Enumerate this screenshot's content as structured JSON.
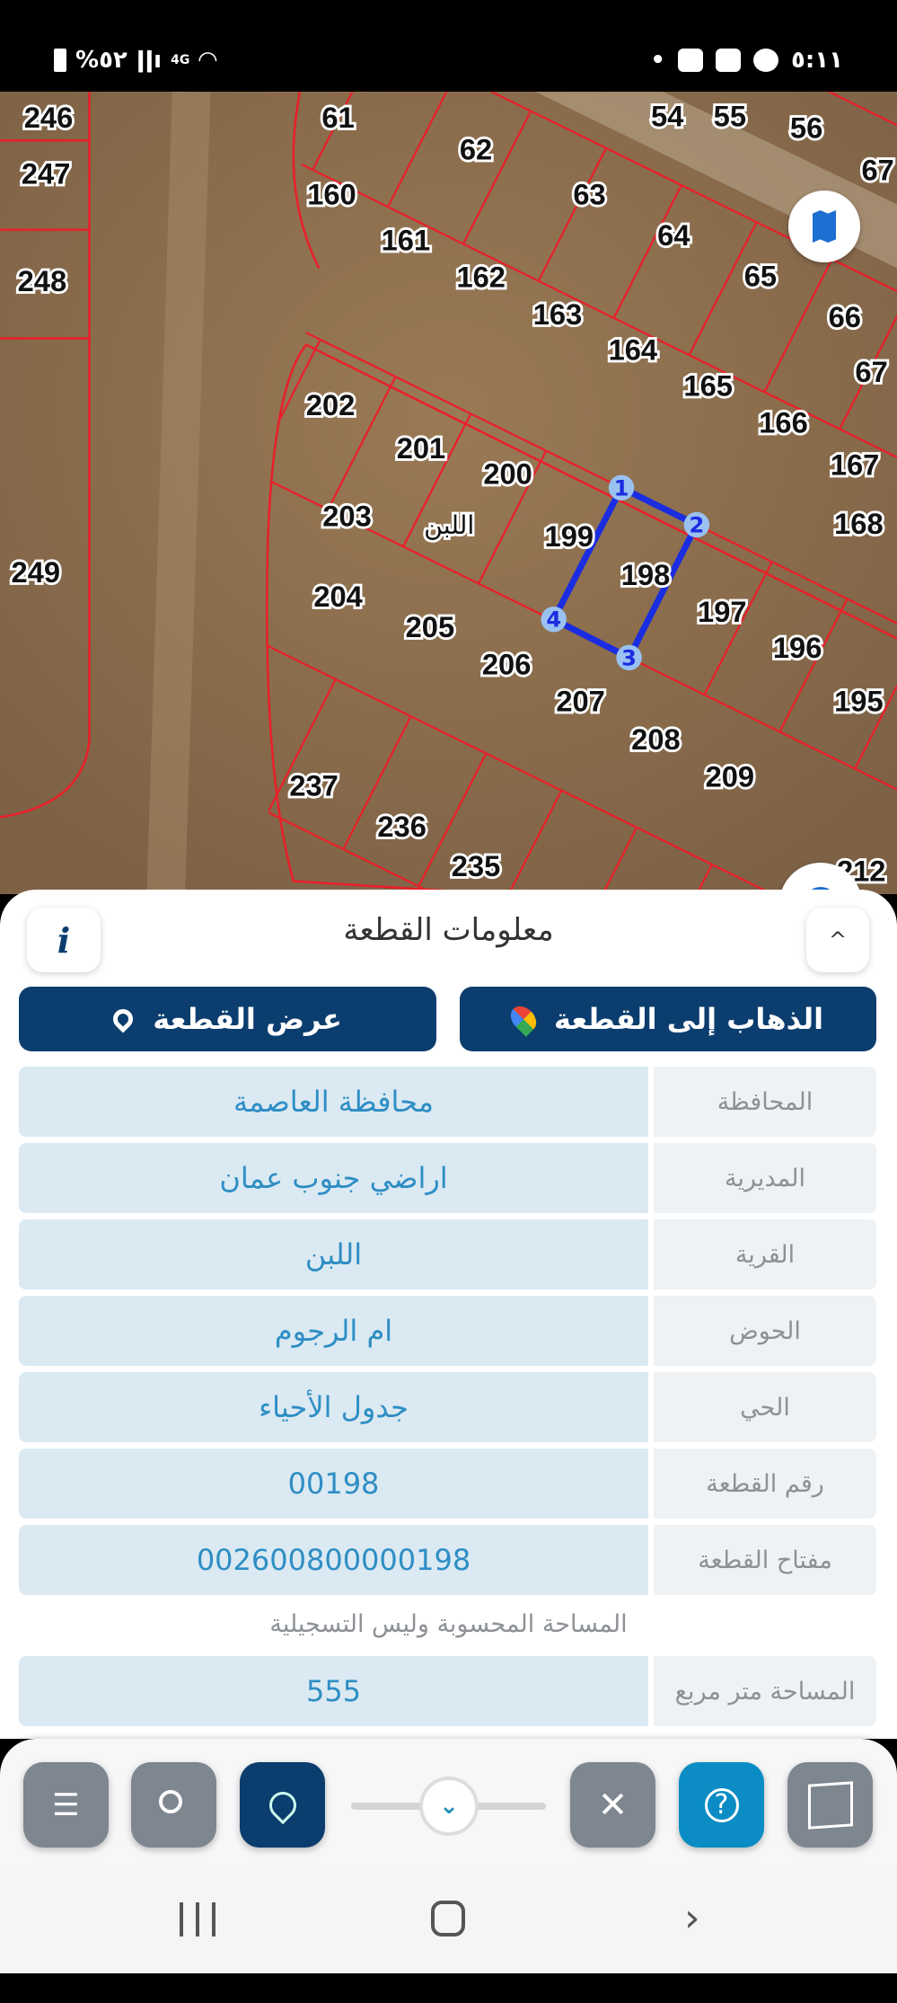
{
  "status_bar": {
    "battery": "%٥٢",
    "network": "4G",
    "time": "٥:١١",
    "icons": [
      "battery-icon",
      "signal-icon",
      "wifi-icon",
      "dot-icon",
      "youtube-icon",
      "gallery-icon",
      "messenger-icon"
    ]
  },
  "map": {
    "parcel_labels": [
      "246",
      "247",
      "248",
      "249",
      "61",
      "62",
      "160",
      "63",
      "54",
      "55",
      "56",
      "67",
      "161",
      "162",
      "64",
      "65",
      "163",
      "164",
      "66",
      "67",
      "165",
      "166",
      "167",
      "202",
      "201",
      "200",
      "168",
      "203",
      "199",
      "198",
      "197",
      "196",
      "204",
      "205",
      "206",
      "207",
      "195",
      "208",
      "209",
      "237",
      "236",
      "235",
      "212"
    ],
    "village_label": "اللبن",
    "vertex_labels": [
      "1",
      "2",
      "3",
      "4"
    ],
    "selected_parcel": "198",
    "colors": {
      "parcel_lines": "#e8202a",
      "selection": "#1a2de0",
      "ground": "#8c6e4c"
    }
  },
  "panel": {
    "title": "معلومات القطعة",
    "goto_button": "الذهاب إلى القطعة",
    "show_button": "عرض القطعة",
    "rows": [
      {
        "label": "المحافظة",
        "value": "محافظة العاصمة"
      },
      {
        "label": "المديرية",
        "value": "اراضي جنوب عمان"
      },
      {
        "label": "القرية",
        "value": "اللبن"
      },
      {
        "label": "الحوض",
        "value": "ام الرجوم"
      },
      {
        "label": "الحي",
        "value": "جدول الأحياء"
      },
      {
        "label": "رقم القطعة",
        "value": "00198"
      },
      {
        "label": "مفتاح القطعة",
        "value": "002600800000198"
      }
    ],
    "note": "المساحة المحسوبة وليس التسجيلية",
    "area_row": {
      "label": "المساحة متر مربع",
      "value": "555"
    }
  },
  "colors": {
    "primary": "#0b3d6e",
    "accent": "#0b8cc4",
    "tool_gray": "#7e8690",
    "value_text": "#2e8ec4"
  }
}
